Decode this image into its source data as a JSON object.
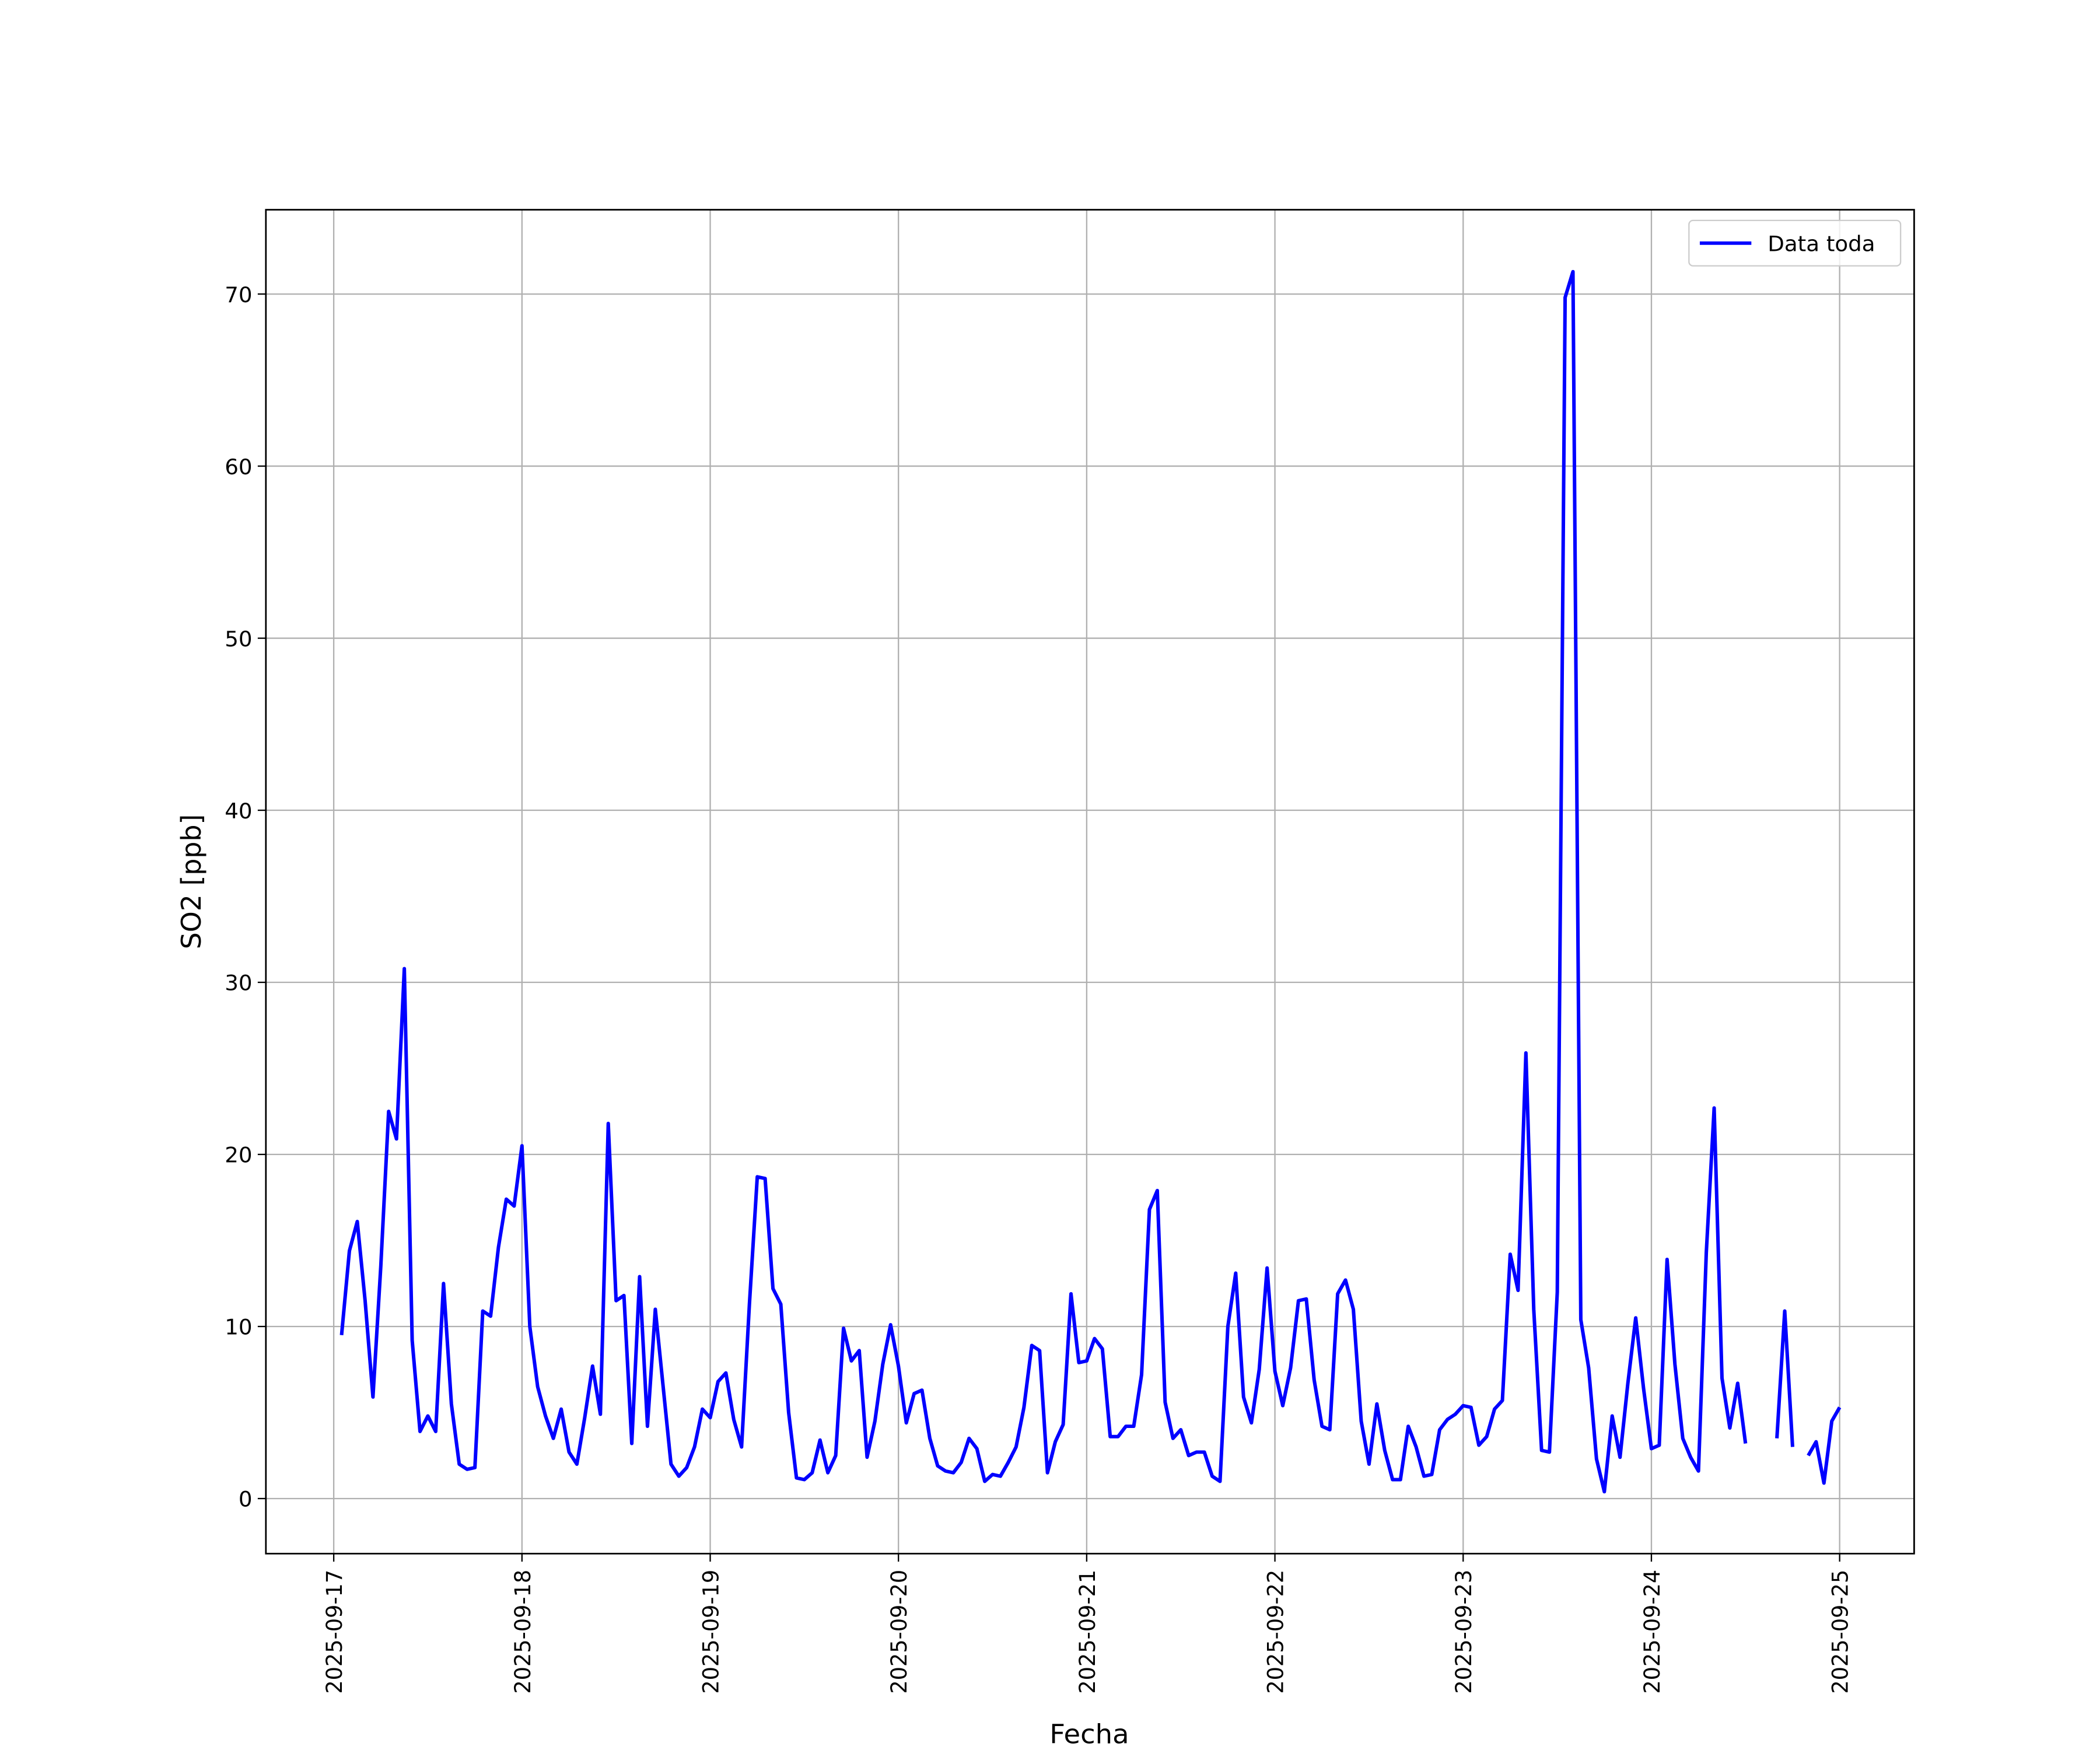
{
  "chart_data": {
    "type": "line",
    "xlabel": "Fecha",
    "ylabel": "SO2 [ppb]",
    "x": [
      "2025-09-17 01:00",
      "2025-09-17 02:00",
      "2025-09-17 03:00",
      "2025-09-17 04:00",
      "2025-09-17 05:00",
      "2025-09-17 06:00",
      "2025-09-17 07:00",
      "2025-09-17 08:00",
      "2025-09-17 09:00",
      "2025-09-17 10:00",
      "2025-09-17 11:00",
      "2025-09-17 12:00",
      "2025-09-17 13:00",
      "2025-09-17 14:00",
      "2025-09-17 15:00",
      "2025-09-17 16:00",
      "2025-09-17 17:00",
      "2025-09-17 18:00",
      "2025-09-17 19:00",
      "2025-09-17 20:00",
      "2025-09-17 21:00",
      "2025-09-17 22:00",
      "2025-09-17 23:00",
      "2025-09-18 00:00",
      "2025-09-18 01:00",
      "2025-09-18 02:00",
      "2025-09-18 03:00",
      "2025-09-18 04:00",
      "2025-09-18 05:00",
      "2025-09-18 06:00",
      "2025-09-18 07:00",
      "2025-09-18 08:00",
      "2025-09-18 09:00",
      "2025-09-18 10:00",
      "2025-09-18 11:00",
      "2025-09-18 12:00",
      "2025-09-18 13:00",
      "2025-09-18 14:00",
      "2025-09-18 15:00",
      "2025-09-18 16:00",
      "2025-09-18 17:00",
      "2025-09-18 18:00",
      "2025-09-18 19:00",
      "2025-09-18 20:00",
      "2025-09-18 21:00",
      "2025-09-18 22:00",
      "2025-09-18 23:00",
      "2025-09-19 00:00",
      "2025-09-19 01:00",
      "2025-09-19 02:00",
      "2025-09-19 03:00",
      "2025-09-19 04:00",
      "2025-09-19 05:00",
      "2025-09-19 06:00",
      "2025-09-19 07:00",
      "2025-09-19 08:00",
      "2025-09-19 09:00",
      "2025-09-19 10:00",
      "2025-09-19 11:00",
      "2025-09-19 12:00",
      "2025-09-19 13:00",
      "2025-09-19 14:00",
      "2025-09-19 15:00",
      "2025-09-19 16:00",
      "2025-09-19 17:00",
      "2025-09-19 18:00",
      "2025-09-19 19:00",
      "2025-09-19 20:00",
      "2025-09-19 21:00",
      "2025-09-19 22:00",
      "2025-09-19 23:00",
      "2025-09-20 00:00",
      "2025-09-20 01:00",
      "2025-09-20 02:00",
      "2025-09-20 03:00",
      "2025-09-20 04:00",
      "2025-09-20 05:00",
      "2025-09-20 06:00",
      "2025-09-20 07:00",
      "2025-09-20 08:00",
      "2025-09-20 09:00",
      "2025-09-20 10:00",
      "2025-09-20 11:00",
      "2025-09-20 12:00",
      "2025-09-20 13:00",
      "2025-09-20 14:00",
      "2025-09-20 15:00",
      "2025-09-20 16:00",
      "2025-09-20 17:00",
      "2025-09-20 18:00",
      "2025-09-20 19:00",
      "2025-09-20 20:00",
      "2025-09-20 21:00",
      "2025-09-20 22:00",
      "2025-09-20 23:00",
      "2025-09-21 00:00",
      "2025-09-21 01:00",
      "2025-09-21 02:00",
      "2025-09-21 03:00",
      "2025-09-21 04:00",
      "2025-09-21 05:00",
      "2025-09-21 06:00",
      "2025-09-21 07:00",
      "2025-09-21 08:00",
      "2025-09-21 09:00",
      "2025-09-21 10:00",
      "2025-09-21 11:00",
      "2025-09-21 12:00",
      "2025-09-21 13:00",
      "2025-09-21 14:00",
      "2025-09-21 15:00",
      "2025-09-21 16:00",
      "2025-09-21 17:00",
      "2025-09-21 18:00",
      "2025-09-21 19:00",
      "2025-09-21 20:00",
      "2025-09-21 21:00",
      "2025-09-21 22:00",
      "2025-09-21 23:00",
      "2025-09-22 00:00",
      "2025-09-22 01:00",
      "2025-09-22 02:00",
      "2025-09-22 03:00",
      "2025-09-22 04:00",
      "2025-09-22 05:00",
      "2025-09-22 06:00",
      "2025-09-22 07:00",
      "2025-09-22 08:00",
      "2025-09-22 09:00",
      "2025-09-22 10:00",
      "2025-09-22 11:00",
      "2025-09-22 12:00",
      "2025-09-22 13:00",
      "2025-09-22 14:00",
      "2025-09-22 15:00",
      "2025-09-22 16:00",
      "2025-09-22 17:00",
      "2025-09-22 18:00",
      "2025-09-22 19:00",
      "2025-09-22 20:00",
      "2025-09-22 21:00",
      "2025-09-22 22:00",
      "2025-09-22 23:00",
      "2025-09-23 00:00",
      "2025-09-23 01:00",
      "2025-09-23 02:00",
      "2025-09-23 03:00",
      "2025-09-23 04:00",
      "2025-09-23 05:00",
      "2025-09-23 06:00",
      "2025-09-23 07:00",
      "2025-09-23 08:00",
      "2025-09-23 09:00",
      "2025-09-23 10:00",
      "2025-09-23 11:00",
      "2025-09-23 12:00",
      "2025-09-23 13:00",
      "2025-09-23 14:00",
      "2025-09-23 15:00",
      "2025-09-23 16:00",
      "2025-09-23 17:00",
      "2025-09-23 18:00",
      "2025-09-23 19:00",
      "2025-09-23 20:00",
      "2025-09-23 21:00",
      "2025-09-23 22:00",
      "2025-09-23 23:00",
      "2025-09-24 00:00",
      "2025-09-24 01:00",
      "2025-09-24 02:00",
      "2025-09-24 03:00",
      "2025-09-24 04:00",
      "2025-09-24 05:00",
      "2025-09-24 06:00",
      "2025-09-24 07:00",
      "2025-09-24 08:00",
      "2025-09-24 09:00",
      "2025-09-24 10:00",
      "2025-09-24 11:00",
      "2025-09-24 12:00",
      "2025-09-24 13:00",
      "2025-09-24 14:00",
      "2025-09-24 15:00",
      "2025-09-24 16:00",
      "2025-09-24 17:00",
      "2025-09-24 18:00",
      "2025-09-24 19:00",
      "2025-09-24 20:00",
      "2025-09-24 21:00",
      "2025-09-24 22:00",
      "2025-09-24 23:00",
      "2025-09-25 00:00"
    ],
    "series": [
      {
        "name": "Data toda",
        "color": "#0000ff",
        "values": [
          9.5,
          14.4,
          16.1,
          11.5,
          5.9,
          13.5,
          22.5,
          20.9,
          30.8,
          9.2,
          3.9,
          4.8,
          3.9,
          12.5,
          5.5,
          2.0,
          1.7,
          1.8,
          10.9,
          10.6,
          14.6,
          17.4,
          17.0,
          20.5,
          10.0,
          6.5,
          4.8,
          3.5,
          5.2,
          2.7,
          2.0,
          4.7,
          7.7,
          4.9,
          21.8,
          11.5,
          11.8,
          3.2,
          12.9,
          4.2,
          11.0,
          6.5,
          2.0,
          1.3,
          1.8,
          3.0,
          5.2,
          4.7,
          6.8,
          7.3,
          4.6,
          3.0,
          11.3,
          18.7,
          18.6,
          12.2,
          11.3,
          5.0,
          1.2,
          1.1,
          1.5,
          3.4,
          1.5,
          2.5,
          9.9,
          8.0,
          8.6,
          2.4,
          4.5,
          7.8,
          10.1,
          7.7,
          4.4,
          6.1,
          6.3,
          3.5,
          1.9,
          1.6,
          1.5,
          2.1,
          3.5,
          2.9,
          1.0,
          1.4,
          1.3,
          2.1,
          3.0,
          5.3,
          8.9,
          8.6,
          1.5,
          3.3,
          4.3,
          11.9,
          7.9,
          8.0,
          9.3,
          8.7,
          3.6,
          3.6,
          4.2,
          4.2,
          7.2,
          16.8,
          17.9,
          5.6,
          3.5,
          4.0,
          2.5,
          2.7,
          2.7,
          1.3,
          1.0,
          10.0,
          13.1,
          5.9,
          4.4,
          7.5,
          13.4,
          7.4,
          5.4,
          7.6,
          11.5,
          11.6,
          6.9,
          4.2,
          4.0,
          11.9,
          12.7,
          11.0,
          4.5,
          2.0,
          5.5,
          2.8,
          1.1,
          1.1,
          4.2,
          3.0,
          1.3,
          1.4,
          4.0,
          4.6,
          4.9,
          5.4,
          5.3,
          3.1,
          3.6,
          5.2,
          5.7,
          14.2,
          12.1,
          25.9,
          11.0,
          2.8,
          2.7,
          12.0,
          69.8,
          71.3,
          10.4,
          7.6,
          2.3,
          0.4,
          4.8,
          2.4,
          6.7,
          10.5,
          6.4,
          2.9,
          3.1,
          13.9,
          7.8,
          3.5,
          2.4,
          1.6,
          14.3,
          22.7,
          7.0,
          4.1,
          6.7,
          3.2,
          null,
          null,
          null,
          3.5,
          10.9,
          3.0,
          null,
          2.5,
          3.3,
          0.9,
          4.5,
          5.3
        ]
      }
    ],
    "xlim": [
      "2025-09-16 15:21",
      "2025-09-25 09:30"
    ],
    "xticks": [
      "2025-09-17",
      "2025-09-18",
      "2025-09-19",
      "2025-09-20",
      "2025-09-21",
      "2025-09-22",
      "2025-09-23",
      "2025-09-24",
      "2025-09-25"
    ],
    "ylim": [
      -3.2,
      74.9
    ],
    "yticks": [
      0,
      10,
      20,
      30,
      40,
      50,
      60,
      70
    ],
    "grid": true,
    "legend": "upper right"
  }
}
